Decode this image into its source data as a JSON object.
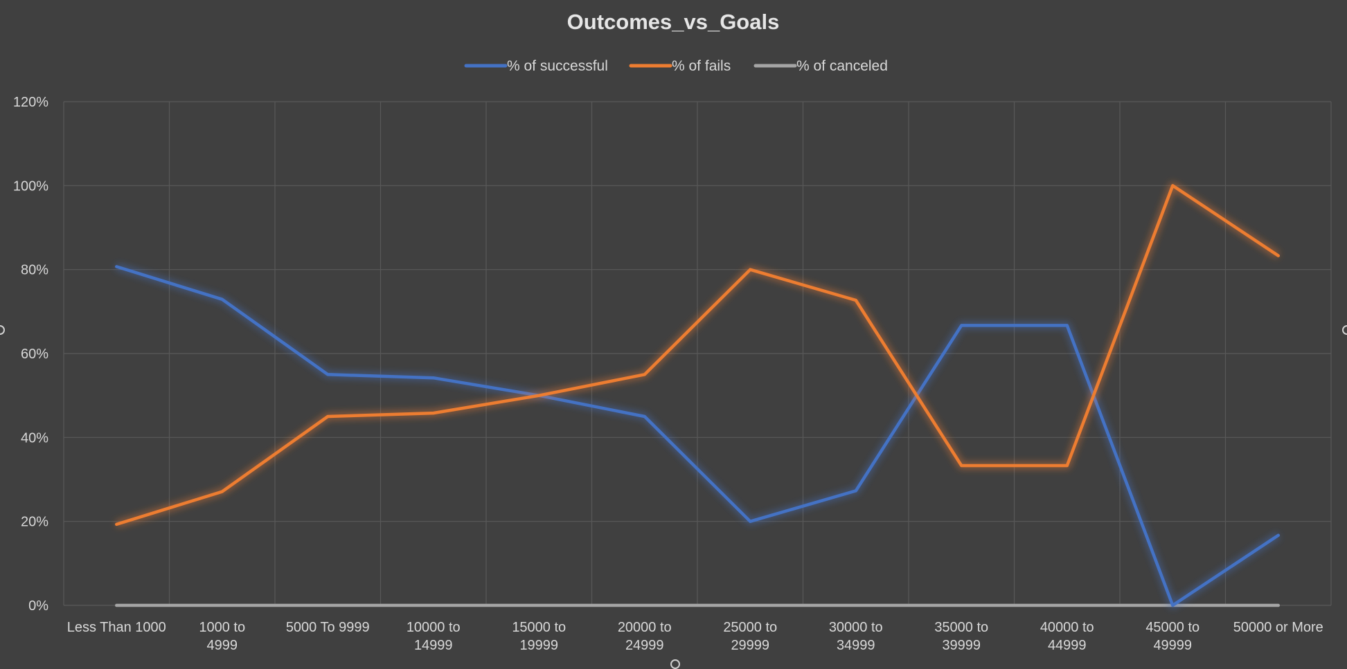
{
  "chart_data": {
    "type": "line",
    "title": "Outcomes_vs_Goals",
    "categories": [
      "Less Than 1000",
      "1000 to 4999",
      "5000 To 9999",
      "10000 to 14999",
      "15000 to 19999",
      "20000 to 24999",
      "25000 to 29999",
      "30000 to 34999",
      "35000 to 39999",
      "40000 to 44999",
      "45000 to 49999",
      "50000 or More"
    ],
    "series": [
      {
        "name": "% of successful",
        "color": "#4472c4",
        "values": [
          0.807,
          0.729,
          0.55,
          0.542,
          0.5,
          0.45,
          0.2,
          0.273,
          0.667,
          0.667,
          0.0,
          0.167
        ]
      },
      {
        "name": "% of fails",
        "color": "#ed7d31",
        "values": [
          0.193,
          0.271,
          0.45,
          0.458,
          0.5,
          0.55,
          0.8,
          0.727,
          0.333,
          0.333,
          1.0,
          0.833
        ]
      },
      {
        "name": "% of canceled",
        "color": "#a5a5a5",
        "values": [
          0,
          0,
          0,
          0,
          0,
          0,
          0,
          0,
          0,
          0,
          0,
          0
        ]
      }
    ],
    "y_ticks": [
      "0%",
      "20%",
      "40%",
      "60%",
      "80%",
      "100%",
      "120%"
    ],
    "ylim": [
      0,
      1.2
    ],
    "xlabel": "",
    "ylabel": "",
    "grid": true,
    "legend_position": "top",
    "colors": {
      "background": "#404040",
      "gridline": "#595959",
      "text": "#d9d9d9"
    }
  }
}
